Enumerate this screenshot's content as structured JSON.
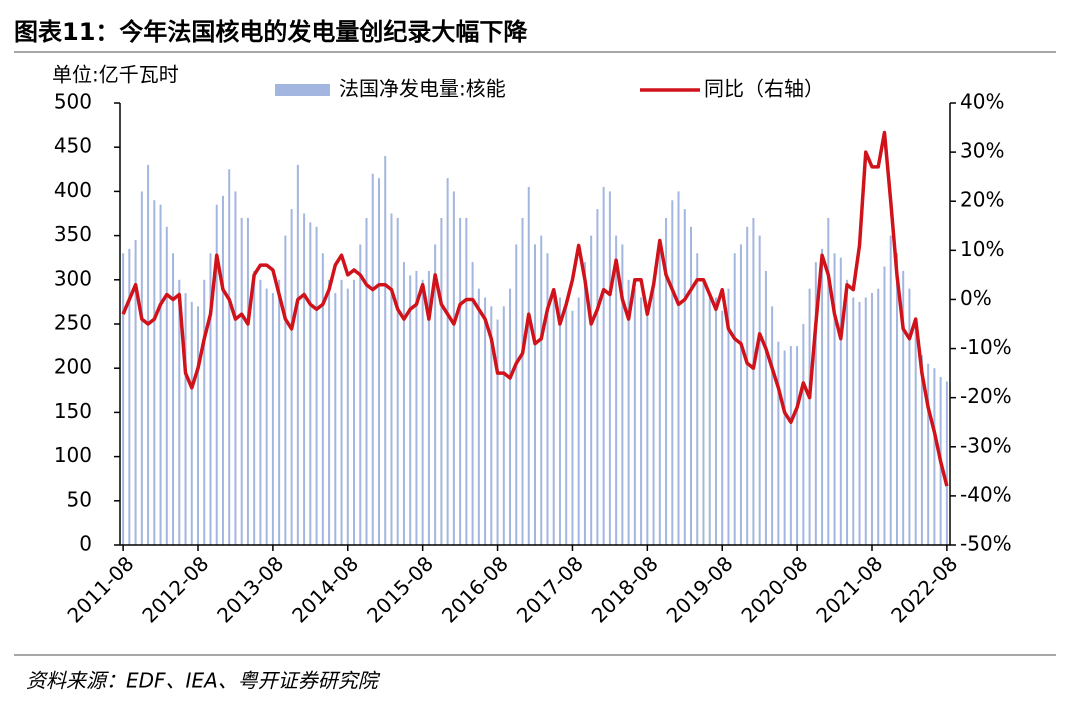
{
  "chart_data": {
    "type": "bar_line",
    "title": "图表11：今年法国核电的发电量创纪录大幅下降",
    "ylabel": "单位:亿千瓦时",
    "source": "资料来源：EDF、IEA、粤开证券研究院",
    "categories": [
      "2011-08",
      null,
      null,
      null,
      null,
      null,
      null,
      null,
      null,
      null,
      null,
      null,
      "2012-08",
      null,
      null,
      null,
      null,
      null,
      null,
      null,
      null,
      null,
      null,
      null,
      "2013-08",
      null,
      null,
      null,
      null,
      null,
      null,
      null,
      null,
      null,
      null,
      null,
      "2014-08",
      null,
      null,
      null,
      null,
      null,
      null,
      null,
      null,
      null,
      null,
      null,
      "2015-08",
      null,
      null,
      null,
      null,
      null,
      null,
      null,
      null,
      null,
      null,
      null,
      "2016-08",
      null,
      null,
      null,
      null,
      null,
      null,
      null,
      null,
      null,
      null,
      null,
      "2017-08",
      null,
      null,
      null,
      null,
      null,
      null,
      null,
      null,
      null,
      null,
      null,
      "2018-08",
      null,
      null,
      null,
      null,
      null,
      null,
      null,
      null,
      null,
      null,
      null,
      "2019-08",
      null,
      null,
      null,
      null,
      null,
      null,
      null,
      null,
      null,
      null,
      null,
      "2020-08",
      null,
      null,
      null,
      null,
      null,
      null,
      null,
      null,
      null,
      null,
      null,
      "2021-08",
      null,
      null,
      null,
      null,
      null,
      null,
      null,
      null,
      null,
      null,
      null,
      "2022-08"
    ],
    "series": [
      {
        "name": "法国净发电量:核能",
        "type": "bar",
        "color": "#a3b6df",
        "values": [
          330,
          335,
          345,
          400,
          430,
          390,
          385,
          360,
          330,
          300,
          285,
          275,
          270,
          300,
          330,
          385,
          395,
          425,
          400,
          370,
          370,
          310,
          300,
          290,
          285,
          300,
          350,
          380,
          430,
          375,
          365,
          360,
          330,
          300,
          285,
          300,
          290,
          300,
          340,
          370,
          420,
          415,
          440,
          375,
          370,
          320,
          305,
          310,
          300,
          310,
          340,
          370,
          415,
          400,
          370,
          370,
          320,
          290,
          280,
          270,
          255,
          270,
          290,
          340,
          370,
          405,
          340,
          350,
          330,
          290,
          280,
          270,
          265,
          280,
          320,
          350,
          380,
          405,
          400,
          350,
          340,
          300,
          290,
          280,
          270,
          290,
          340,
          370,
          390,
          400,
          380,
          360,
          330,
          300,
          280,
          280,
          265,
          290,
          330,
          340,
          360,
          370,
          350,
          310,
          270,
          230,
          220,
          225,
          225,
          250,
          290,
          320,
          335,
          370,
          330,
          325,
          300,
          280,
          275,
          280,
          285,
          290,
          315,
          350,
          330,
          310,
          290,
          250,
          215,
          205,
          200,
          190,
          185
        ]
      },
      {
        "name": "同比（右轴）",
        "type": "line",
        "axis": "y2",
        "color": "#d0121b",
        "values": [
          -3,
          0,
          3,
          -4,
          -5,
          -4,
          -1,
          1,
          0,
          1,
          -15,
          -18,
          -14,
          -8,
          -3,
          9,
          2,
          0,
          -4,
          -3,
          -5,
          5,
          7,
          7,
          6,
          1,
          -4,
          -6,
          0,
          1,
          -1,
          -2,
          -1,
          2,
          7,
          9,
          5,
          6,
          5,
          3,
          2,
          3,
          3,
          2,
          -2,
          -4,
          -2,
          -1,
          3,
          -4,
          5,
          -1,
          -3,
          -5,
          -1,
          0,
          0,
          -2,
          -4,
          -8,
          -15,
          -15,
          -16,
          -13,
          -11,
          -3,
          -9,
          -8,
          -2,
          2,
          -5,
          -1,
          4,
          11,
          4,
          -5,
          -2,
          2,
          1,
          8,
          0,
          -4,
          4,
          4,
          -3,
          3,
          12,
          5,
          2,
          -1,
          0,
          2,
          4,
          4,
          1,
          -2,
          2,
          -6,
          -8,
          -9,
          -13,
          -14,
          -7,
          -10,
          -14,
          -18,
          -23,
          -25,
          -22,
          -17,
          -20,
          -5,
          9,
          5,
          -3,
          -8,
          3,
          2,
          11,
          30,
          27,
          27,
          34,
          20,
          5,
          -6,
          -8,
          -4,
          -15,
          -22,
          -27,
          -33,
          -38
        ]
      }
    ],
    "ylim": [
      0,
      500
    ],
    "yticks": [
      0,
      50,
      100,
      150,
      200,
      250,
      300,
      350,
      400,
      450,
      500
    ],
    "y2lim": [
      -50,
      40
    ],
    "y2ticks": [
      {
        "value": -50,
        "label": "-50%"
      },
      {
        "value": -40,
        "label": "-40%"
      },
      {
        "value": -30,
        "label": "-30%"
      },
      {
        "value": -20,
        "label": "-20%"
      },
      {
        "value": -10,
        "label": "-10%"
      },
      {
        "value": 0,
        "label": "0%"
      },
      {
        "value": 10,
        "label": "10%"
      },
      {
        "value": 20,
        "label": "20%"
      },
      {
        "value": 30,
        "label": "30%"
      },
      {
        "value": 40,
        "label": "40%"
      }
    ]
  }
}
